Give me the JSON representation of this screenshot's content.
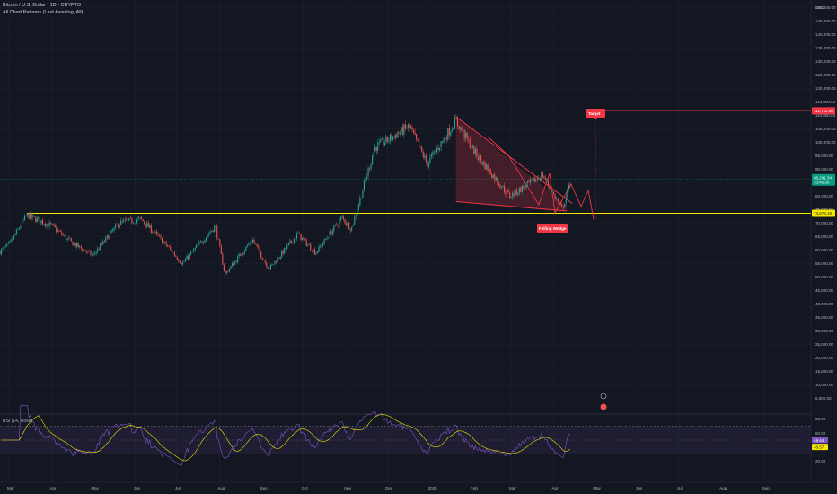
{
  "header": {
    "symbol_line": "Bitcoin / U.S. Dollar · 1D · CRYPTO",
    "indicator_line": "All Chart Patterns (Last Awaiting, All)",
    "currency": "USD"
  },
  "price_axis": {
    "ticks": [
      "150,000.00",
      "145,000.00",
      "140,000.00",
      "135,000.00",
      "130,000.00",
      "125,000.00",
      "120,000.00",
      "115,000.00",
      "110,000.00",
      "105,000.00",
      "100,000.00",
      "95,000.00",
      "90,000.00",
      "85,000.00",
      "80,000.00",
      "75,000.00",
      "70,000.00",
      "65,000.00",
      "60,000.00",
      "55,000.00",
      "50,000.00",
      "45,000.00",
      "40,000.00",
      "35,000.00",
      "30,000.00",
      "25,000.00",
      "20,000.00",
      "15,000.00",
      "10,000.00",
      "5,000.00"
    ],
    "tick_values": [
      150000,
      145000,
      140000,
      135000,
      130000,
      125000,
      120000,
      115000,
      110000,
      105000,
      100000,
      95000,
      90000,
      85000,
      80000,
      75000,
      70000,
      65000,
      60000,
      55000,
      50000,
      45000,
      40000,
      35000,
      30000,
      25000,
      20000,
      15000,
      10000,
      5000
    ],
    "target_label": "111,712.46",
    "target_value": 111712,
    "current_price_label": "86,241.34",
    "current_timer": "10:45:26",
    "current_value": 86241,
    "support_label": "73,678.19",
    "support_value": 73678
  },
  "rsi_axis": {
    "ticks": [
      "80.00",
      "60.00",
      "40.00",
      "20.00"
    ],
    "tick_values": [
      80,
      60,
      40,
      20
    ],
    "current_label": "49.44",
    "ma_label": "48.57"
  },
  "rsi_panel": {
    "title": "RSI (14, close)"
  },
  "annotations": {
    "target": "Target",
    "pattern": "Falling Wedge"
  },
  "x_axis": {
    "ticks": [
      "Mar",
      "Apr",
      "May",
      "Jun",
      "Jul",
      "Aug",
      "Sep",
      "Oct",
      "Nov",
      "Dec",
      "2025",
      "Feb",
      "Mar",
      "Apr",
      "May",
      "Jun",
      "Jul",
      "Aug",
      "Sep"
    ]
  },
  "colors": {
    "background": "#131722",
    "up": "#26a69a",
    "down": "#ef5350",
    "support": "#f7e600",
    "pattern": "#f23645",
    "rsi_line": "#7e57c2",
    "rsi_ma": "#f7e600",
    "current_price": "#089981"
  },
  "chart_data": {
    "type": "candlestick",
    "series": [
      {
        "name": "",
        "values": [
          {
            "date": "2024-03-01",
            "price": 62000
          },
          {
            "date": "2024-03-14",
            "price": 73000
          },
          {
            "date": "2024-04-01",
            "price": 69000
          },
          {
            "date": "2024-04-15",
            "price": 63000
          },
          {
            "date": "2024-05-01",
            "price": 58000
          },
          {
            "date": "2024-05-20",
            "price": 70000
          },
          {
            "date": "2024-06-05",
            "price": 71500
          },
          {
            "date": "2024-06-25",
            "price": 61000
          },
          {
            "date": "2024-07-05",
            "price": 55000
          },
          {
            "date": "2024-07-29",
            "price": 69000
          },
          {
            "date": "2024-08-05",
            "price": 51000
          },
          {
            "date": "2024-08-25",
            "price": 64000
          },
          {
            "date": "2024-09-06",
            "price": 53000
          },
          {
            "date": "2024-09-27",
            "price": 66000
          },
          {
            "date": "2024-10-10",
            "price": 59000
          },
          {
            "date": "2024-10-29",
            "price": 72000
          },
          {
            "date": "2024-11-05",
            "price": 68000
          },
          {
            "date": "2024-11-22",
            "price": 98000
          },
          {
            "date": "2024-12-17",
            "price": 106000
          },
          {
            "date": "2024-12-30",
            "price": 92000
          },
          {
            "date": "2025-01-20",
            "price": 108000
          },
          {
            "date": "2025-02-03",
            "price": 96000
          },
          {
            "date": "2025-02-28",
            "price": 80000
          },
          {
            "date": "2025-03-24",
            "price": 88000
          },
          {
            "date": "2025-04-07",
            "price": 75000
          },
          {
            "date": "2025-04-14",
            "price": 86241
          }
        ]
      }
    ],
    "xlim": [
      "2024-02-15",
      "2025-09-15"
    ],
    "ylim": [
      0,
      152000
    ],
    "pattern": {
      "name": "Falling Wedge",
      "upper_line": [
        {
          "date": "2025-01-20",
          "price": 109500
        },
        {
          "date": "2025-04-08",
          "price": 84000
        }
      ],
      "lower_line": [
        {
          "date": "2025-01-20",
          "price": 78000
        },
        {
          "date": "2025-04-08",
          "price": 74500
        }
      ],
      "target": 111712
    },
    "support_level": 73678,
    "rsi": {
      "period": 14,
      "levels": [
        70,
        30
      ],
      "current": 49.44,
      "ma": 48.57
    }
  }
}
